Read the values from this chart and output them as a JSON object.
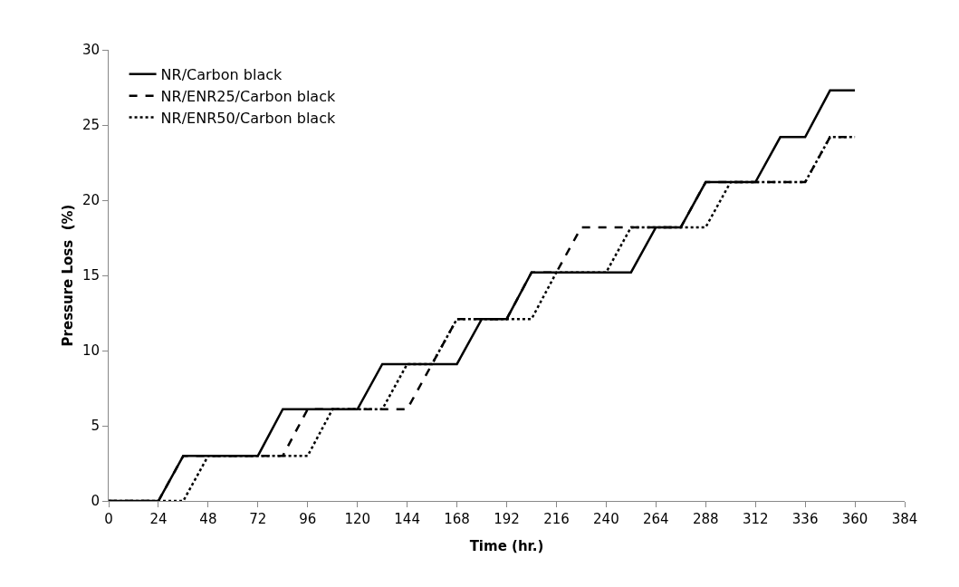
{
  "chart_data": {
    "type": "line",
    "xlabel": "Time (hr.)",
    "ylabel": "Pressure Loss  (%)",
    "xlim": [
      0,
      384
    ],
    "xticks": [
      0,
      24,
      48,
      72,
      96,
      120,
      144,
      168,
      192,
      216,
      240,
      264,
      288,
      312,
      336,
      360,
      384
    ],
    "ylim": [
      0,
      30
    ],
    "yticks": [
      0,
      5,
      10,
      15,
      20,
      25,
      30
    ],
    "grid": false,
    "legend": "top left",
    "marker": "none",
    "x": [
      0,
      12,
      24,
      36,
      48,
      60,
      72,
      84,
      96,
      108,
      120,
      132,
      144,
      156,
      168,
      180,
      192,
      204,
      216,
      228,
      240,
      252,
      264,
      276,
      288,
      300,
      312,
      324,
      336,
      348,
      360
    ],
    "series": [
      {
        "name": "NR/Carbon black",
        "color": "#000000",
        "line_style": "solid",
        "values": [
          0,
          0,
          0,
          3,
          3,
          3,
          3,
          6.1,
          6.1,
          6.1,
          6.1,
          9.1,
          9.1,
          9.1,
          9.1,
          12.1,
          12.1,
          15.2,
          15.2,
          15.2,
          15.2,
          15.2,
          18.2,
          18.2,
          21.2,
          21.2,
          21.2,
          24.2,
          24.2,
          27.3,
          27.3
        ]
      },
      {
        "name": "NR/ENR25/Carbon black",
        "color": "#000000",
        "line_style": "dashed",
        "values": [
          0,
          0,
          0,
          3,
          3,
          3,
          3,
          3,
          6.1,
          6.1,
          6.1,
          6.1,
          6.1,
          9.1,
          12.1,
          12.1,
          12.1,
          15.2,
          15.2,
          18.2,
          18.2,
          18.2,
          18.2,
          18.2,
          21.2,
          21.2,
          21.2,
          21.2,
          21.2,
          24.2,
          24.2
        ]
      },
      {
        "name": "NR/ENR50/Carbon black",
        "color": "#000000",
        "line_style": "dotted",
        "values": [
          0,
          0,
          0,
          0,
          3,
          3,
          3,
          3,
          3,
          6.1,
          6.1,
          6.1,
          9.1,
          9.1,
          12.1,
          12.1,
          12.1,
          12.1,
          15.2,
          15.2,
          15.2,
          18.2,
          18.2,
          18.2,
          18.2,
          21.2,
          21.2,
          21.2,
          21.2,
          24.2,
          24.2
        ]
      }
    ]
  }
}
